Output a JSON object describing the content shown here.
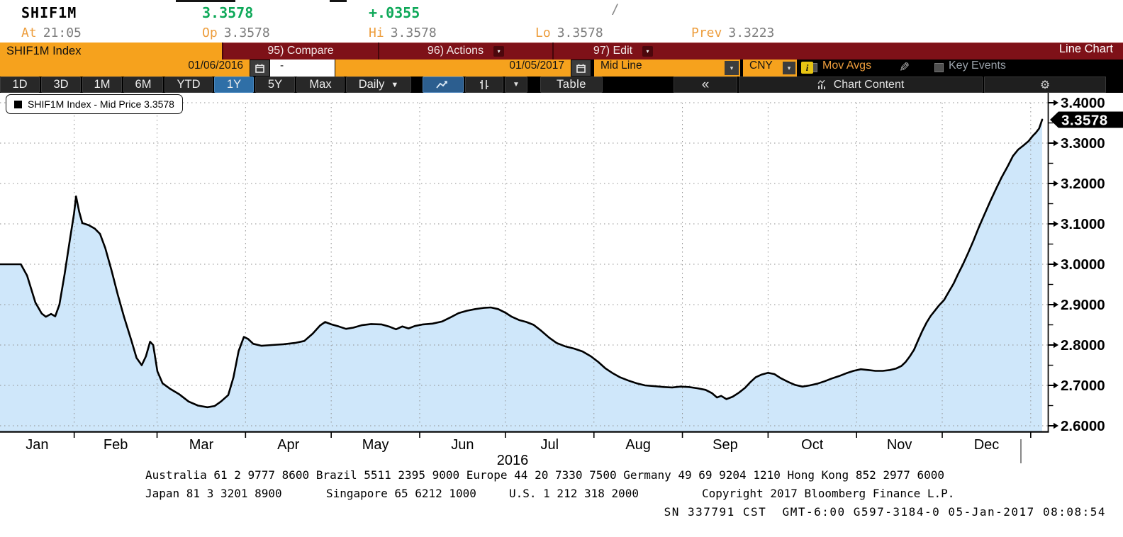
{
  "header": {
    "ticker": "SHIF1M",
    "last_price": "3.3578",
    "change": "+.0355",
    "slash": "/",
    "stats": [
      {
        "label": "At",
        "value": "21:05"
      },
      {
        "label": "Op",
        "value": "3.3578"
      },
      {
        "label": "Hi",
        "value": "3.3578"
      },
      {
        "label": "Lo",
        "value": "3.3578"
      },
      {
        "label": "Prev",
        "value": "3.3223"
      }
    ]
  },
  "menu_bar": {
    "security_tab": "SHIF1M Index",
    "items": [
      {
        "label": "95) Compare",
        "dropdown": false
      },
      {
        "label": "96) Actions",
        "dropdown": true
      },
      {
        "label": "97) Edit",
        "dropdown": true
      }
    ],
    "chart_type_label": "Line Chart"
  },
  "controls": {
    "date_from": "01/06/2016",
    "range_separator": "-",
    "date_to": "01/05/2017",
    "price_field": "Mid Line",
    "currency": "CNY",
    "mov_avgs": "Mov Avgs",
    "key_events": "Key Events",
    "info_badge": "i"
  },
  "toolbar": {
    "periods": [
      "1D",
      "3D",
      "1M",
      "6M",
      "YTD",
      "1Y",
      "5Y",
      "Max"
    ],
    "selected_period": "1Y",
    "frequency": "Daily",
    "table": "Table",
    "collapse": "«",
    "chart_content": "Chart Content"
  },
  "legend": {
    "marker": "■",
    "text": "SHIF1M Index - Mid Price 3.3578"
  },
  "chart_data": {
    "type": "area",
    "title": "SHIF1M Index - Mid Price",
    "x_range": [
      "01/06/2016",
      "01/05/2017"
    ],
    "year_label": "2016",
    "months": [
      "Jan",
      "Feb",
      "Mar",
      "Apr",
      "May",
      "Jun",
      "Jul",
      "Aug",
      "Sep",
      "Oct",
      "Nov",
      "Dec"
    ],
    "ylim": [
      2.6,
      3.4
    ],
    "y_ticks": [
      3.4,
      3.3,
      3.2,
      3.1,
      3.0,
      2.9,
      2.8,
      2.7,
      2.6
    ],
    "y_tick_labels": [
      "3.4000",
      "3.3000",
      "3.2000",
      "3.1000",
      "3.0000",
      "2.9000",
      "2.8000",
      "2.7000",
      "2.6000"
    ],
    "minor_tick_step": 0.05,
    "grid": true,
    "legend_position": "top-left",
    "last_price": 3.3578,
    "last_price_label": "3.3578",
    "line_color": "#000000",
    "fill_color": "#cfe7fa",
    "series": [
      {
        "name": "SHIF1M Index - Mid Price",
        "x_unit": "fraction_of_date_range",
        "points": [
          [
            0.0,
            3.0
          ],
          [
            0.02,
            3.0
          ],
          [
            0.026,
            2.972
          ],
          [
            0.034,
            2.905
          ],
          [
            0.04,
            2.878
          ],
          [
            0.044,
            2.87
          ],
          [
            0.049,
            2.877
          ],
          [
            0.053,
            2.871
          ],
          [
            0.057,
            2.9
          ],
          [
            0.062,
            2.975
          ],
          [
            0.067,
            3.06
          ],
          [
            0.071,
            3.125
          ],
          [
            0.073,
            3.168
          ],
          [
            0.076,
            3.13
          ],
          [
            0.079,
            3.102
          ],
          [
            0.085,
            3.097
          ],
          [
            0.091,
            3.088
          ],
          [
            0.096,
            3.075
          ],
          [
            0.101,
            3.04
          ],
          [
            0.107,
            2.985
          ],
          [
            0.113,
            2.925
          ],
          [
            0.119,
            2.87
          ],
          [
            0.126,
            2.812
          ],
          [
            0.131,
            2.768
          ],
          [
            0.136,
            2.75
          ],
          [
            0.14,
            2.772
          ],
          [
            0.144,
            2.808
          ],
          [
            0.147,
            2.8
          ],
          [
            0.151,
            2.735
          ],
          [
            0.156,
            2.705
          ],
          [
            0.163,
            2.692
          ],
          [
            0.172,
            2.678
          ],
          [
            0.181,
            2.66
          ],
          [
            0.19,
            2.65
          ],
          [
            0.199,
            2.646
          ],
          [
            0.206,
            2.649
          ],
          [
            0.212,
            2.66
          ],
          [
            0.219,
            2.676
          ],
          [
            0.224,
            2.72
          ],
          [
            0.229,
            2.785
          ],
          [
            0.234,
            2.82
          ],
          [
            0.238,
            2.815
          ],
          [
            0.243,
            2.803
          ],
          [
            0.251,
            2.798
          ],
          [
            0.261,
            2.8
          ],
          [
            0.272,
            2.802
          ],
          [
            0.283,
            2.805
          ],
          [
            0.292,
            2.81
          ],
          [
            0.3,
            2.828
          ],
          [
            0.307,
            2.848
          ],
          [
            0.312,
            2.857
          ],
          [
            0.318,
            2.851
          ],
          [
            0.325,
            2.846
          ],
          [
            0.332,
            2.84
          ],
          [
            0.339,
            2.843
          ],
          [
            0.347,
            2.849
          ],
          [
            0.356,
            2.852
          ],
          [
            0.366,
            2.851
          ],
          [
            0.374,
            2.845
          ],
          [
            0.38,
            2.839
          ],
          [
            0.386,
            2.846
          ],
          [
            0.392,
            2.841
          ],
          [
            0.398,
            2.847
          ],
          [
            0.406,
            2.851
          ],
          [
            0.415,
            2.853
          ],
          [
            0.424,
            2.858
          ],
          [
            0.432,
            2.868
          ],
          [
            0.44,
            2.879
          ],
          [
            0.448,
            2.885
          ],
          [
            0.456,
            2.889
          ],
          [
            0.464,
            2.892
          ],
          [
            0.471,
            2.893
          ],
          [
            0.478,
            2.889
          ],
          [
            0.485,
            2.88
          ],
          [
            0.491,
            2.87
          ],
          [
            0.498,
            2.862
          ],
          [
            0.505,
            2.857
          ],
          [
            0.512,
            2.85
          ],
          [
            0.519,
            2.836
          ],
          [
            0.527,
            2.818
          ],
          [
            0.534,
            2.805
          ],
          [
            0.542,
            2.797
          ],
          [
            0.551,
            2.791
          ],
          [
            0.559,
            2.784
          ],
          [
            0.567,
            2.772
          ],
          [
            0.574,
            2.758
          ],
          [
            0.581,
            2.742
          ],
          [
            0.588,
            2.73
          ],
          [
            0.595,
            2.72
          ],
          [
            0.603,
            2.712
          ],
          [
            0.611,
            2.705
          ],
          [
            0.619,
            2.7
          ],
          [
            0.628,
            2.698
          ],
          [
            0.637,
            2.696
          ],
          [
            0.645,
            2.695
          ],
          [
            0.653,
            2.697
          ],
          [
            0.661,
            2.696
          ],
          [
            0.669,
            2.693
          ],
          [
            0.677,
            2.689
          ],
          [
            0.683,
            2.681
          ],
          [
            0.688,
            2.67
          ],
          [
            0.692,
            2.674
          ],
          [
            0.697,
            2.666
          ],
          [
            0.703,
            2.672
          ],
          [
            0.709,
            2.682
          ],
          [
            0.715,
            2.694
          ],
          [
            0.72,
            2.708
          ],
          [
            0.725,
            2.72
          ],
          [
            0.731,
            2.727
          ],
          [
            0.737,
            2.731
          ],
          [
            0.743,
            2.728
          ],
          [
            0.749,
            2.718
          ],
          [
            0.756,
            2.709
          ],
          [
            0.763,
            2.701
          ],
          [
            0.77,
            2.697
          ],
          [
            0.777,
            2.7
          ],
          [
            0.784,
            2.704
          ],
          [
            0.791,
            2.71
          ],
          [
            0.798,
            2.717
          ],
          [
            0.805,
            2.723
          ],
          [
            0.812,
            2.73
          ],
          [
            0.819,
            2.736
          ],
          [
            0.826,
            2.74
          ],
          [
            0.833,
            2.738
          ],
          [
            0.84,
            2.736
          ],
          [
            0.847,
            2.736
          ],
          [
            0.854,
            2.738
          ],
          [
            0.86,
            2.742
          ],
          [
            0.865,
            2.748
          ],
          [
            0.869,
            2.758
          ],
          [
            0.873,
            2.772
          ],
          [
            0.877,
            2.788
          ],
          [
            0.881,
            2.812
          ],
          [
            0.885,
            2.835
          ],
          [
            0.889,
            2.855
          ],
          [
            0.893,
            2.872
          ],
          [
            0.897,
            2.885
          ],
          [
            0.901,
            2.898
          ],
          [
            0.906,
            2.912
          ],
          [
            0.91,
            2.93
          ],
          [
            0.915,
            2.952
          ],
          [
            0.919,
            2.974
          ],
          [
            0.924,
            3.0
          ],
          [
            0.929,
            3.028
          ],
          [
            0.934,
            3.058
          ],
          [
            0.939,
            3.09
          ],
          [
            0.944,
            3.12
          ],
          [
            0.95,
            3.155
          ],
          [
            0.956,
            3.188
          ],
          [
            0.961,
            3.215
          ],
          [
            0.967,
            3.243
          ],
          [
            0.972,
            3.268
          ],
          [
            0.977,
            3.284
          ],
          [
            0.982,
            3.294
          ],
          [
            0.987,
            3.305
          ],
          [
            0.991,
            3.318
          ],
          [
            0.994,
            3.326
          ],
          [
            0.997,
            3.336
          ],
          [
            1.0,
            3.358
          ]
        ]
      }
    ]
  },
  "footer": {
    "line1": "Australia 61 2 9777 8600 Brazil 5511 2395 9000 Europe 44 20 7330 7500 Germany 49 69 9204 1210 Hong Kong 852 2977 6000",
    "line2": [
      "Japan 81 3 3201 8900",
      "Singapore 65 6212 1000",
      "U.S. 1 212 318 2000",
      "Copyright 2017 Bloomberg Finance L.P."
    ],
    "line3": "SN 337791 CST  GMT-6:00 G597-3184-0 05-Jan-2017 08:08:54"
  },
  "colors": {
    "accent_orange": "#f6a21d",
    "menu_red": "#7e1118",
    "price_green": "#0da858",
    "label_orange": "#ed9d3c",
    "selected_blue": "#2f6fa7",
    "chart_fill": "#cfe7fa",
    "chart_line": "#000000",
    "info_yellow": "#e7c413",
    "key_events_gray": "#99a1a9"
  }
}
